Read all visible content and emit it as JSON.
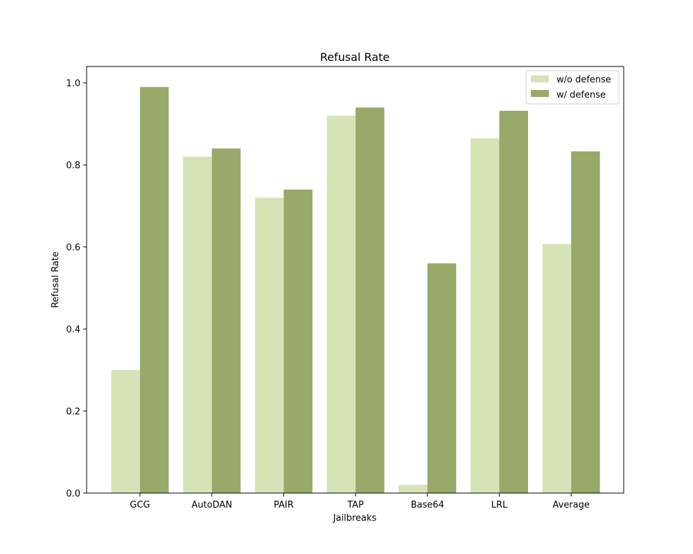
{
  "chart_data": {
    "type": "bar",
    "title": "Refusal Rate",
    "xlabel": "Jailbreaks",
    "ylabel": "Refusal Rate",
    "categories": [
      "GCG",
      "AutoDAN",
      "PAIR",
      "TAP",
      "Base64",
      "LRL",
      "Average"
    ],
    "series": [
      {
        "name": "w/o defense",
        "color": "#d6e3b7",
        "values": [
          0.3,
          0.82,
          0.72,
          0.92,
          0.02,
          0.865,
          0.607
        ]
      },
      {
        "name": "w/ defense",
        "color": "#98a96a",
        "values": [
          0.99,
          0.84,
          0.74,
          0.94,
          0.56,
          0.932,
          0.833
        ]
      }
    ],
    "ylim": [
      0,
      1.04
    ],
    "yticks": [
      "0.0",
      "0.2",
      "0.4",
      "0.6",
      "0.8",
      "1.0"
    ],
    "grid": false,
    "legend_position": "top-right"
  }
}
